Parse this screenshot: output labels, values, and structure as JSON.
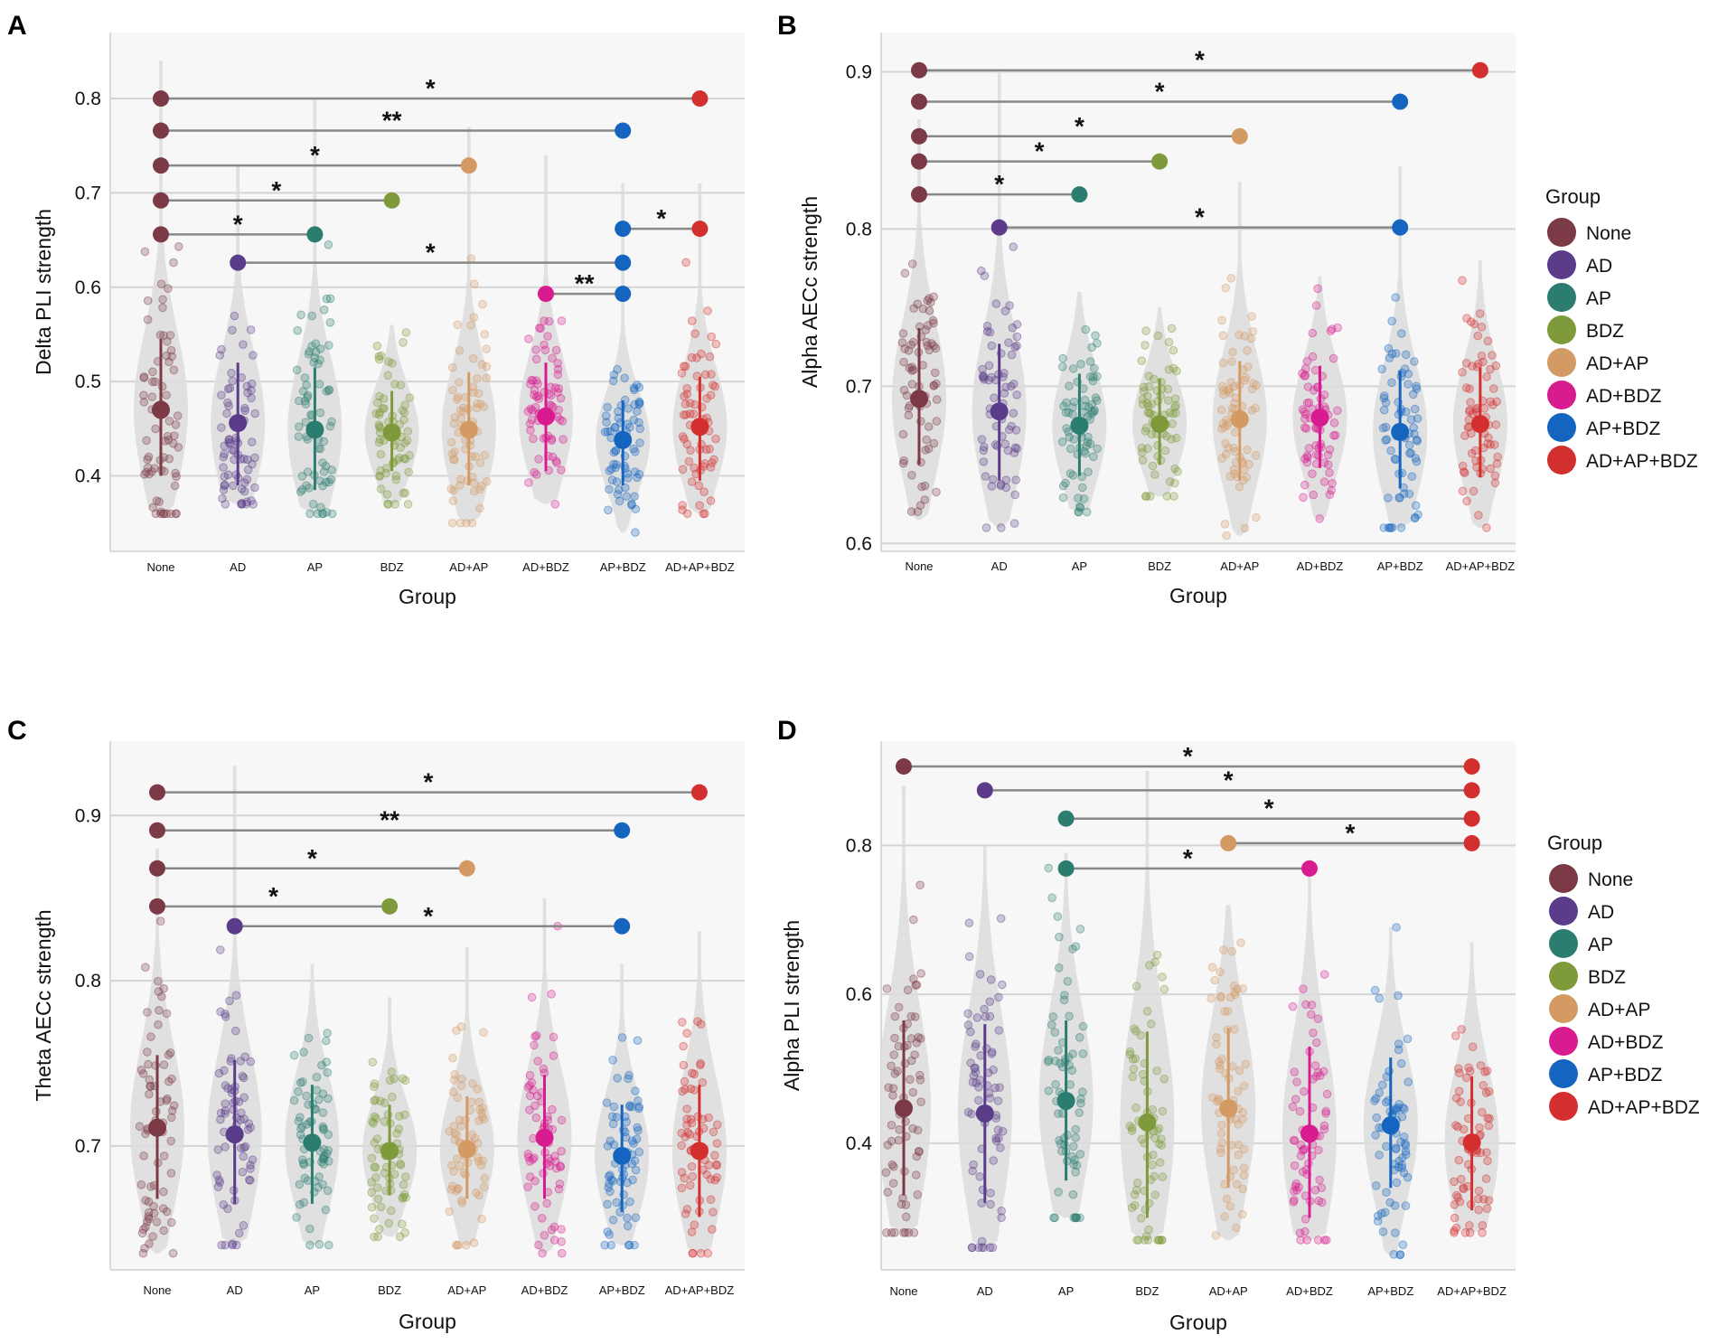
{
  "legend": {
    "title": "Group",
    "entries": [
      {
        "label": "None",
        "color": "#7b3a46"
      },
      {
        "label": "AD",
        "color": "#5b3c8a"
      },
      {
        "label": "AP",
        "color": "#2a7d6f"
      },
      {
        "label": "BDZ",
        "color": "#7f9a3a"
      },
      {
        "label": "AD+AP",
        "color": "#d49a63"
      },
      {
        "label": "AD+BDZ",
        "color": "#d81b8f"
      },
      {
        "label": "AP+BDZ",
        "color": "#1565c0"
      },
      {
        "label": "AD+AP+BDZ",
        "color": "#d32f2f"
      }
    ]
  },
  "chart_data": [
    {
      "panel": "A",
      "type": "violin",
      "xlabel": "Group",
      "ylabel": "Delta PLI strength",
      "categories": [
        "None",
        "AD",
        "AP",
        "BDZ",
        "AD+AP",
        "AD+BDZ",
        "AP+BDZ",
        "AD+AP+BDZ"
      ],
      "ylim": [
        0.32,
        0.87
      ],
      "yticks": [
        0.4,
        0.5,
        0.6,
        0.7,
        0.8
      ],
      "ytick_labels": [
        "0.4",
        "0.5",
        "0.6",
        "0.7",
        "0.8"
      ],
      "means": [
        0.47,
        0.456,
        0.449,
        0.446,
        0.449,
        0.463,
        0.438,
        0.452
      ],
      "sd_low": [
        0.4,
        0.39,
        0.385,
        0.405,
        0.39,
        0.405,
        0.39,
        0.395
      ],
      "sd_high": [
        0.545,
        0.52,
        0.515,
        0.49,
        0.51,
        0.52,
        0.48,
        0.505
      ],
      "ranges": [
        [
          0.36,
          0.84
        ],
        [
          0.37,
          0.73
        ],
        [
          0.36,
          0.8
        ],
        [
          0.37,
          0.56
        ],
        [
          0.35,
          0.77
        ],
        [
          0.37,
          0.74
        ],
        [
          0.34,
          0.71
        ],
        [
          0.36,
          0.71
        ]
      ],
      "significance": [
        {
          "from": 0,
          "to": 7,
          "y": 0.8,
          "label": "*"
        },
        {
          "from": 0,
          "to": 6,
          "y": 0.766,
          "label": "**"
        },
        {
          "from": 0,
          "to": 4,
          "y": 0.729,
          "label": "*"
        },
        {
          "from": 0,
          "to": 3,
          "y": 0.692,
          "label": "*"
        },
        {
          "from": 0,
          "to": 2,
          "y": 0.656,
          "label": "*"
        },
        {
          "from": 6,
          "to": 7,
          "y": 0.662,
          "label": "*"
        },
        {
          "from": 1,
          "to": 6,
          "y": 0.626,
          "label": "*"
        },
        {
          "from": 5,
          "to": 6,
          "y": 0.593,
          "label": "**"
        }
      ]
    },
    {
      "panel": "B",
      "type": "violin",
      "xlabel": "Group",
      "ylabel": "Alpha AECc strength",
      "categories": [
        "None",
        "AD",
        "AP",
        "BDZ",
        "AD+AP",
        "AD+BDZ",
        "AP+BDZ",
        "AD+AP+BDZ"
      ],
      "ylim": [
        0.595,
        0.925
      ],
      "yticks": [
        0.6,
        0.7,
        0.8,
        0.9
      ],
      "ytick_labels": [
        "0.6",
        "0.7",
        "0.8",
        "0.9"
      ],
      "means": [
        0.692,
        0.684,
        0.675,
        0.676,
        0.679,
        0.68,
        0.671,
        0.676
      ],
      "sd_low": [
        0.65,
        0.64,
        0.643,
        0.65,
        0.64,
        0.648,
        0.635,
        0.642
      ],
      "sd_high": [
        0.737,
        0.727,
        0.708,
        0.705,
        0.716,
        0.713,
        0.71,
        0.712
      ],
      "ranges": [
        [
          0.615,
          0.87
        ],
        [
          0.61,
          0.9
        ],
        [
          0.62,
          0.76
        ],
        [
          0.63,
          0.75
        ],
        [
          0.605,
          0.83
        ],
        [
          0.615,
          0.77
        ],
        [
          0.61,
          0.84
        ],
        [
          0.61,
          0.78
        ]
      ],
      "significance": [
        {
          "from": 0,
          "to": 7,
          "y": 0.901,
          "label": "*"
        },
        {
          "from": 0,
          "to": 6,
          "y": 0.881,
          "label": "*"
        },
        {
          "from": 0,
          "to": 4,
          "y": 0.859,
          "label": "*"
        },
        {
          "from": 0,
          "to": 3,
          "y": 0.843,
          "label": "*"
        },
        {
          "from": 0,
          "to": 2,
          "y": 0.822,
          "label": "*"
        },
        {
          "from": 1,
          "to": 6,
          "y": 0.801,
          "label": "*"
        }
      ]
    },
    {
      "panel": "C",
      "type": "violin",
      "xlabel": "Group",
      "ylabel": "Theta AECc strength",
      "categories": [
        "None",
        "AD",
        "AP",
        "BDZ",
        "AD+AP",
        "AD+BDZ",
        "AP+BDZ",
        "AD+AP+BDZ"
      ],
      "ylim": [
        0.625,
        0.945
      ],
      "yticks": [
        0.7,
        0.8,
        0.9
      ],
      "ytick_labels": [
        "0.7",
        "0.8",
        "0.9"
      ],
      "means": [
        0.711,
        0.707,
        0.702,
        0.697,
        0.698,
        0.705,
        0.694,
        0.697
      ],
      "sd_low": [
        0.668,
        0.665,
        0.665,
        0.67,
        0.668,
        0.668,
        0.66,
        0.657
      ],
      "sd_high": [
        0.755,
        0.752,
        0.737,
        0.725,
        0.73,
        0.743,
        0.725,
        0.737
      ],
      "ranges": [
        [
          0.635,
          0.88
        ],
        [
          0.64,
          0.93
        ],
        [
          0.64,
          0.81
        ],
        [
          0.645,
          0.79
        ],
        [
          0.64,
          0.82
        ],
        [
          0.635,
          0.85
        ],
        [
          0.64,
          0.81
        ],
        [
          0.635,
          0.83
        ]
      ],
      "significance": [
        {
          "from": 0,
          "to": 7,
          "y": 0.914,
          "label": "*"
        },
        {
          "from": 0,
          "to": 6,
          "y": 0.891,
          "label": "**"
        },
        {
          "from": 0,
          "to": 4,
          "y": 0.868,
          "label": "*"
        },
        {
          "from": 0,
          "to": 3,
          "y": 0.845,
          "label": "*"
        },
        {
          "from": 1,
          "to": 6,
          "y": 0.833,
          "label": "*"
        }
      ]
    },
    {
      "panel": "D",
      "type": "violin",
      "xlabel": "Group",
      "ylabel": "Alpha PLI strength",
      "categories": [
        "None",
        "AD",
        "AP",
        "BDZ",
        "AD+AP",
        "AD+BDZ",
        "AP+BDZ",
        "AD+AP+BDZ"
      ],
      "ylim": [
        0.23,
        0.94
      ],
      "yticks": [
        0.4,
        0.6,
        0.8
      ],
      "ytick_labels": [
        "0.4",
        "0.6",
        "0.8"
      ],
      "means": [
        0.447,
        0.44,
        0.457,
        0.428,
        0.447,
        0.413,
        0.424,
        0.401
      ],
      "sd_low": [
        0.33,
        0.32,
        0.35,
        0.3,
        0.34,
        0.3,
        0.34,
        0.31
      ],
      "sd_high": [
        0.565,
        0.56,
        0.565,
        0.55,
        0.555,
        0.53,
        0.515,
        0.49
      ],
      "ranges": [
        [
          0.28,
          0.88
        ],
        [
          0.26,
          0.8
        ],
        [
          0.3,
          0.79
        ],
        [
          0.27,
          0.9
        ],
        [
          0.27,
          0.72
        ],
        [
          0.27,
          0.78
        ],
        [
          0.25,
          0.69
        ],
        [
          0.28,
          0.67
        ]
      ],
      "significance": [
        {
          "from": 0,
          "to": 7,
          "y": 0.906,
          "label": "*"
        },
        {
          "from": 1,
          "to": 7,
          "y": 0.874,
          "label": "*"
        },
        {
          "from": 2,
          "to": 7,
          "y": 0.836,
          "label": "*"
        },
        {
          "from": 4,
          "to": 7,
          "y": 0.803,
          "label": "*"
        },
        {
          "from": 2,
          "to": 5,
          "y": 0.769,
          "label": "*"
        }
      ]
    }
  ]
}
